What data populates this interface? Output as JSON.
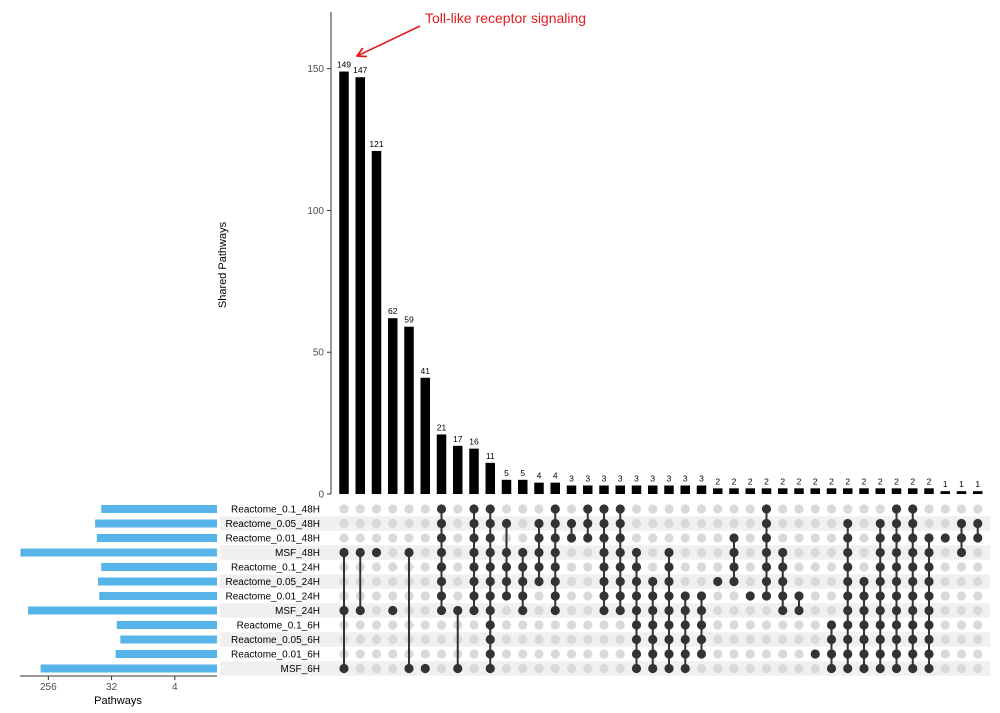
{
  "chart_data": {
    "type": "upset",
    "ylabel": "Shared Pathways",
    "set_size_xlabel": "Pathways",
    "ylim": [
      0,
      170
    ],
    "yticks": [
      0,
      50,
      100,
      150
    ],
    "set_size_ticks": [
      256,
      32,
      4
    ],
    "colors": {
      "bar": "#000000",
      "set_bar": "#56b4e9",
      "dot_on": "#333333",
      "dot_off": "#d9d9d9",
      "stripe": "#f0f0f0",
      "annotation": "#e41a1c"
    },
    "sets": [
      {
        "name": "Reactome_0.1_48H",
        "size": 45
      },
      {
        "name": "Reactome_0.05_48H",
        "size": 55
      },
      {
        "name": "Reactome_0.01_48H",
        "size": 52
      },
      {
        "name": "MSF_48H",
        "size": 640
      },
      {
        "name": "Reactome_0.1_24H",
        "size": 45
      },
      {
        "name": "Reactome_0.05_24H",
        "size": 50
      },
      {
        "name": "Reactome_0.01_24H",
        "size": 48
      },
      {
        "name": "MSF_24H",
        "size": 500
      },
      {
        "name": "Reactome_0.1_6H",
        "size": 27
      },
      {
        "name": "Reactome_0.05_6H",
        "size": 24
      },
      {
        "name": "Reactome_0.01_6H",
        "size": 28
      },
      {
        "name": "MSF_6H",
        "size": 330
      }
    ],
    "intersections": [
      {
        "value": 149,
        "sets": [
          3,
          7,
          11
        ]
      },
      {
        "value": 147,
        "sets": [
          3,
          7
        ]
      },
      {
        "value": 121,
        "sets": [
          3
        ]
      },
      {
        "value": 62,
        "sets": [
          7
        ]
      },
      {
        "value": 59,
        "sets": [
          3,
          11
        ]
      },
      {
        "value": 41,
        "sets": [
          11
        ]
      },
      {
        "value": 21,
        "sets": [
          0,
          1,
          2,
          3,
          4,
          5,
          6,
          7
        ]
      },
      {
        "value": 17,
        "sets": [
          7,
          11
        ]
      },
      {
        "value": 16,
        "sets": [
          0,
          1,
          2,
          3,
          4,
          5,
          6,
          7
        ]
      },
      {
        "value": 11,
        "sets": [
          0,
          1,
          2,
          3,
          4,
          5,
          6,
          7,
          8,
          9,
          10,
          11
        ]
      },
      {
        "value": 5,
        "sets": [
          1,
          3,
          4,
          5,
          6
        ]
      },
      {
        "value": 5,
        "sets": [
          3,
          4,
          5,
          6,
          7
        ]
      },
      {
        "value": 4,
        "sets": [
          1,
          2,
          3,
          4,
          5
        ]
      },
      {
        "value": 4,
        "sets": [
          0,
          1,
          2,
          3,
          4,
          5,
          6,
          7
        ]
      },
      {
        "value": 3,
        "sets": [
          1,
          2
        ]
      },
      {
        "value": 3,
        "sets": [
          0,
          1,
          2
        ]
      },
      {
        "value": 3,
        "sets": [
          0,
          1,
          2,
          3,
          4,
          5,
          6,
          7
        ]
      },
      {
        "value": 3,
        "sets": [
          0,
          1,
          2,
          3,
          4,
          5,
          6,
          7
        ]
      },
      {
        "value": 3,
        "sets": [
          3,
          4,
          5,
          6,
          7,
          8,
          9,
          10,
          11
        ]
      },
      {
        "value": 3,
        "sets": [
          5,
          6,
          7,
          8,
          9,
          10,
          11
        ]
      },
      {
        "value": 3,
        "sets": [
          3,
          4,
          5,
          6,
          7,
          8,
          9,
          10,
          11
        ]
      },
      {
        "value": 3,
        "sets": [
          6,
          7,
          8,
          9,
          10,
          11
        ]
      },
      {
        "value": 3,
        "sets": [
          6,
          7,
          8,
          9,
          10
        ]
      },
      {
        "value": 2,
        "sets": [
          5
        ]
      },
      {
        "value": 2,
        "sets": [
          2,
          3,
          4,
          5
        ]
      },
      {
        "value": 2,
        "sets": [
          6
        ]
      },
      {
        "value": 2,
        "sets": [
          0,
          1,
          2,
          3,
          4,
          5,
          6
        ]
      },
      {
        "value": 2,
        "sets": [
          3,
          4,
          5,
          6,
          7
        ]
      },
      {
        "value": 2,
        "sets": [
          6,
          7
        ]
      },
      {
        "value": 2,
        "sets": [
          10
        ]
      },
      {
        "value": 2,
        "sets": [
          8,
          9,
          10,
          11
        ]
      },
      {
        "value": 2,
        "sets": [
          1,
          2,
          3,
          4,
          5,
          6,
          7,
          8,
          9,
          10,
          11
        ]
      },
      {
        "value": 2,
        "sets": [
          5,
          6,
          7,
          8,
          9,
          10,
          11
        ]
      },
      {
        "value": 2,
        "sets": [
          1,
          2,
          3,
          4,
          5,
          6,
          7,
          8,
          9,
          10,
          11
        ]
      },
      {
        "value": 2,
        "sets": [
          0,
          1,
          2,
          3,
          4,
          5,
          6,
          7,
          8,
          9,
          10,
          11
        ]
      },
      {
        "value": 2,
        "sets": [
          0,
          1,
          2,
          3,
          4,
          5,
          6,
          7,
          8,
          9,
          10,
          11
        ]
      },
      {
        "value": 2,
        "sets": [
          2,
          3,
          4,
          5,
          6,
          7,
          8,
          9,
          10,
          11
        ]
      },
      {
        "value": 1,
        "sets": [
          2
        ]
      },
      {
        "value": 1,
        "sets": [
          1,
          2,
          3
        ]
      },
      {
        "value": 1,
        "sets": [
          1,
          2
        ]
      }
    ],
    "annotation": {
      "text": "Toll-like receptor signaling",
      "target_index": 0
    }
  }
}
